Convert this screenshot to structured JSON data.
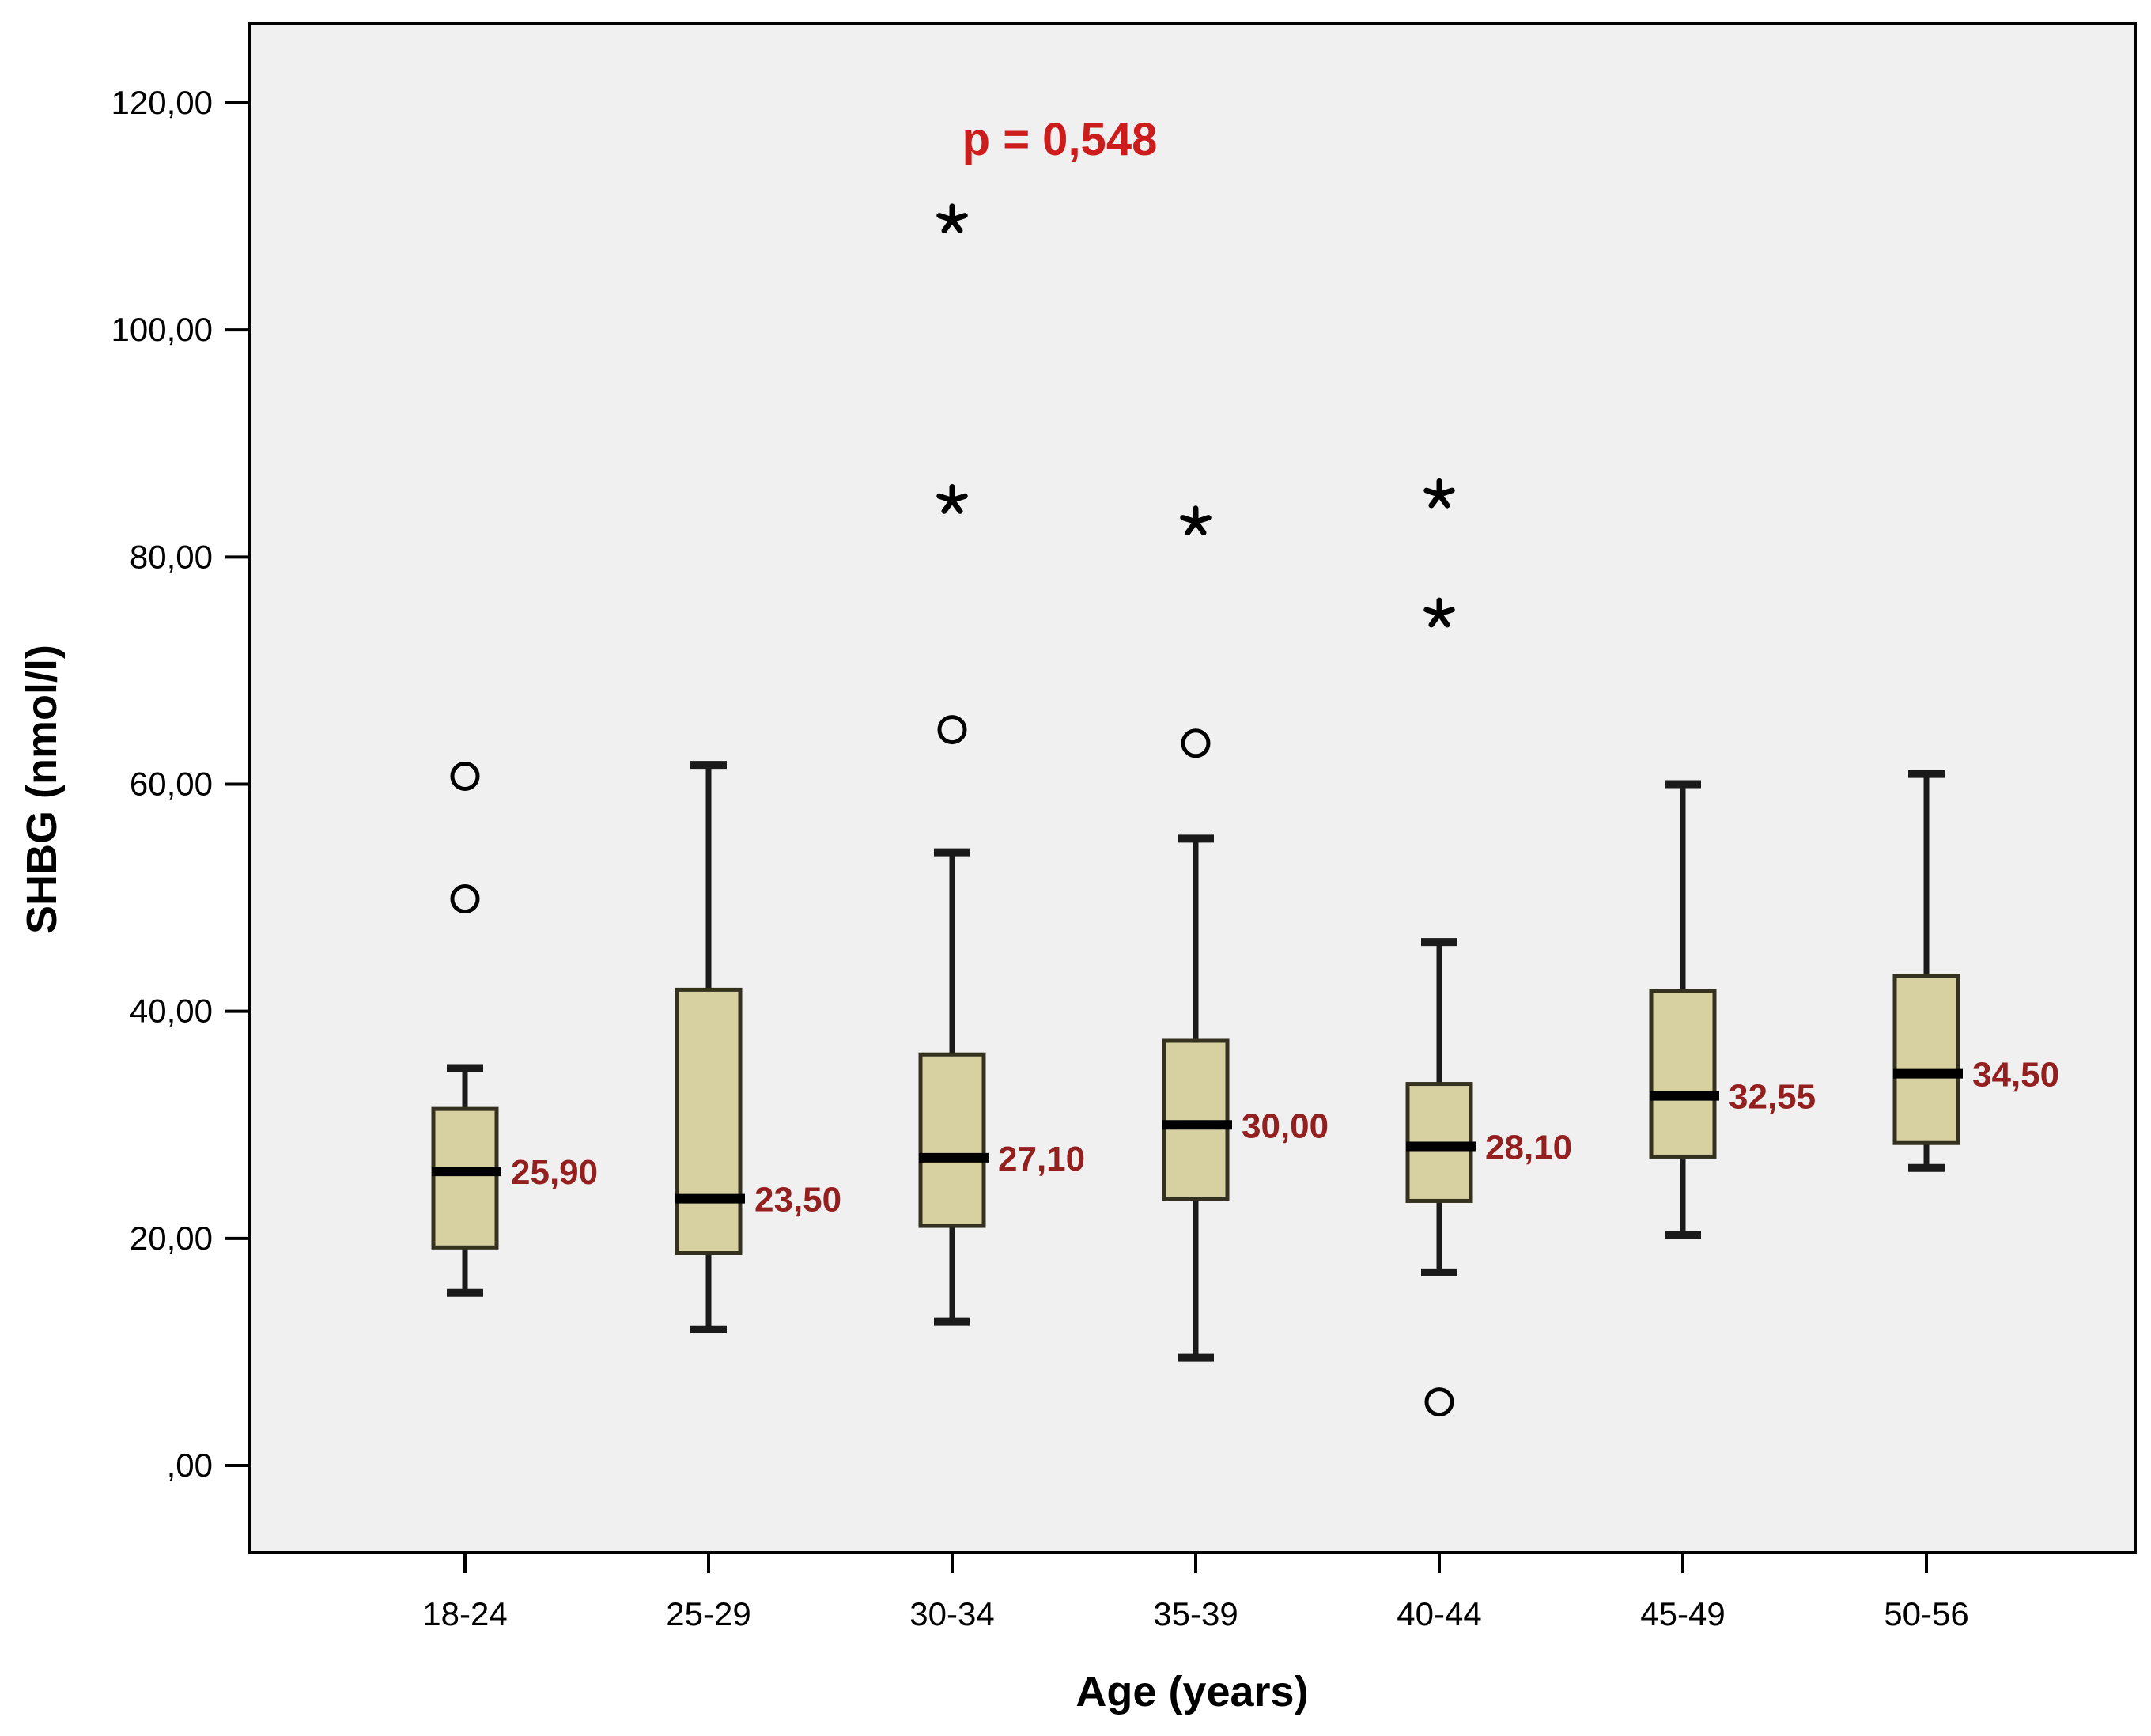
{
  "chart_data": {
    "type": "boxplot",
    "title": "",
    "xlabel": "Age (years)",
    "ylabel": "SHBG (nmol/l)",
    "annotation": {
      "text": "p = 0,548",
      "color": "#cc1c1c"
    },
    "ylim": [
      -7.7,
      127.0
    ],
    "grid": false,
    "legend": "none",
    "y_ticks": [
      {
        "value": 0,
        "label": ",00"
      },
      {
        "value": 20,
        "label": "20,00"
      },
      {
        "value": 40,
        "label": "40,00"
      },
      {
        "value": 60,
        "label": "60,00"
      },
      {
        "value": 80,
        "label": "80,00"
      },
      {
        "value": 100,
        "label": "100,00"
      },
      {
        "value": 120,
        "label": "120,00"
      }
    ],
    "categories": [
      "18-24",
      "25-29",
      "30-34",
      "35-39",
      "40-44",
      "45-49",
      "50-56"
    ],
    "series": [
      {
        "category": "18-24",
        "whisker_low": 15.2,
        "q1": 19.2,
        "median": 25.9,
        "median_label": "25,90",
        "q3": 31.4,
        "whisker_high": 35.0,
        "outlier_circles": [
          49.9,
          60.7
        ],
        "extreme_asterisks": []
      },
      {
        "category": "25-29",
        "whisker_low": 12.0,
        "q1": 18.7,
        "median": 23.5,
        "median_label": "23,50",
        "q3": 41.9,
        "whisker_high": 61.7,
        "outlier_circles": [],
        "extreme_asterisks": []
      },
      {
        "category": "30-34",
        "whisker_low": 12.7,
        "q1": 21.1,
        "median": 27.1,
        "median_label": "27,10",
        "q3": 36.2,
        "whisker_high": 54.0,
        "outlier_circles": [
          64.8
        ],
        "extreme_asterisks": [
          85.0,
          109.7
        ]
      },
      {
        "category": "35-39",
        "whisker_low": 9.5,
        "q1": 23.5,
        "median": 30.0,
        "median_label": "30,00",
        "q3": 37.4,
        "whisker_high": 55.2,
        "outlier_circles": [
          63.6
        ],
        "extreme_asterisks": [
          83.1
        ]
      },
      {
        "category": "40-44",
        "whisker_low": 17.0,
        "q1": 23.3,
        "median": 28.1,
        "median_label": "28,10",
        "q3": 33.6,
        "whisker_high": 46.1,
        "outlier_circles": [
          5.6
        ],
        "extreme_asterisks": [
          75.0,
          85.5
        ]
      },
      {
        "category": "45-49",
        "whisker_low": 20.3,
        "q1": 27.2,
        "median": 32.55,
        "median_label": "32,55",
        "q3": 41.8,
        "whisker_high": 60.0,
        "outlier_circles": [],
        "extreme_asterisks": []
      },
      {
        "category": "50-56",
        "whisker_low": 26.2,
        "q1": 28.4,
        "median": 34.5,
        "median_label": "34,50",
        "q3": 43.1,
        "whisker_high": 60.9,
        "outlier_circles": [],
        "extreme_asterisks": []
      }
    ],
    "colors": {
      "plot_bg": "#f0f0f0",
      "frame": "#000000",
      "box_fill": "#d7d1a2",
      "box_border": "#34311f",
      "median_line": "#000000",
      "whisker": "#1a1a1a",
      "outlier": "#000000",
      "median_label": "#931f1f",
      "text": "#000000"
    }
  }
}
